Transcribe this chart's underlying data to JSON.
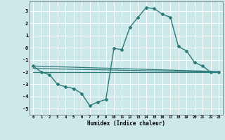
{
  "background_color": "#cce8e8",
  "grid_color": "#ffffff",
  "line_color": "#2d7a7a",
  "xlabel": "Humidex (Indice chaleur)",
  "xlim": [
    -0.5,
    23.5
  ],
  "ylim": [
    -5.5,
    3.8
  ],
  "yticks": [
    -5,
    -4,
    -3,
    -2,
    -1,
    0,
    1,
    2,
    3
  ],
  "xticks": [
    0,
    1,
    2,
    3,
    4,
    5,
    6,
    7,
    8,
    9,
    10,
    11,
    12,
    13,
    14,
    15,
    16,
    17,
    18,
    19,
    20,
    21,
    22,
    23
  ],
  "main_x": [
    0,
    1,
    2,
    3,
    4,
    5,
    6,
    7,
    8,
    9,
    10,
    11,
    12,
    13,
    14,
    15,
    16,
    17,
    18,
    19,
    20,
    21,
    22,
    23
  ],
  "main_y": [
    -1.5,
    -2.0,
    -2.2,
    -3.0,
    -3.2,
    -3.35,
    -3.75,
    -4.75,
    -4.45,
    -4.25,
    -0.05,
    -0.15,
    1.7,
    2.5,
    3.3,
    3.2,
    2.75,
    2.5,
    0.1,
    -0.25,
    -1.2,
    -1.5,
    -2.0,
    -2.0
  ],
  "trend1_x": [
    0,
    23
  ],
  "trend1_y": [
    -1.5,
    -1.95
  ],
  "trend2_x": [
    0,
    23
  ],
  "trend2_y": [
    -1.7,
    -2.0
  ],
  "trend3_x": [
    0,
    23
  ],
  "trend3_y": [
    -2.0,
    -2.0
  ]
}
